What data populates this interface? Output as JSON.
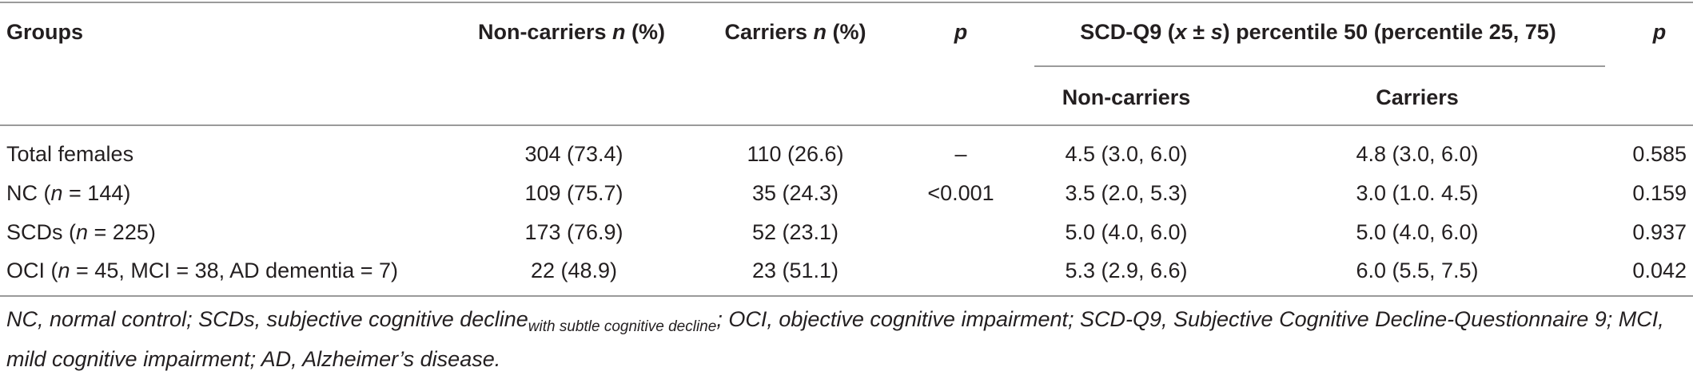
{
  "table": {
    "headers": {
      "groups": "Groups",
      "noncarriers": {
        "label": "Non-carriers ",
        "n": "n",
        "pct": " (%)"
      },
      "carriers": {
        "label": "Carriers ",
        "n": "n",
        "pct": " (%)"
      },
      "p1": "p",
      "scd": {
        "pre": "SCD-Q9 (",
        "x": "x",
        "pm": " ± ",
        "s": "s",
        "post": ") percentile 50 (percentile 25, 75)"
      },
      "p2": "p",
      "sub_noncarriers": "Non-carriers",
      "sub_carriers": "Carriers"
    },
    "rows": [
      {
        "group_pre": "Total females",
        "group_n": "",
        "group_post": "",
        "noncarriers": "304 (73.4)",
        "carriers": "110 (26.6)",
        "p1": "–",
        "scd_noncarriers": "4.5 (3.0, 6.0)",
        "scd_carriers": "4.8 (3.0, 6.0)",
        "p2": "0.585"
      },
      {
        "group_pre": "NC (",
        "group_n": "n",
        "group_post": " = 144)",
        "noncarriers": "109 (75.7)",
        "carriers": "35 (24.3)",
        "p1": "<0.001",
        "scd_noncarriers": "3.5 (2.0, 5.3)",
        "scd_carriers": "3.0 (1.0. 4.5)",
        "p2": "0.159"
      },
      {
        "group_pre": "SCDs (",
        "group_n": "n",
        "group_post": " = 225)",
        "noncarriers": "173 (76.9)",
        "carriers": "52 (23.1)",
        "p1": "",
        "scd_noncarriers": "5.0 (4.0, 6.0)",
        "scd_carriers": "5.0 (4.0, 6.0)",
        "p2": "0.937"
      },
      {
        "group_pre": "OCI (",
        "group_n": "n",
        "group_post": " = 45, MCI = 38, AD dementia = 7)",
        "noncarriers": "22 (48.9)",
        "carriers": "23 (51.1)",
        "p1": "",
        "scd_noncarriers": "5.3 (2.9, 6.6)",
        "scd_carriers": "6.0 (5.5, 7.5)",
        "p2": "0.042"
      }
    ],
    "footnote": {
      "part1": "NC, normal control; SCDs, subjective cognitive decline",
      "subscript": "with subtle cognitive decline",
      "part2": "; OCI, objective cognitive impairment; SCD-Q9, Subjective Cognitive Decline-Questionnaire 9; MCI, mild cognitive impairment; AD, Alzheimer’s disease."
    }
  }
}
